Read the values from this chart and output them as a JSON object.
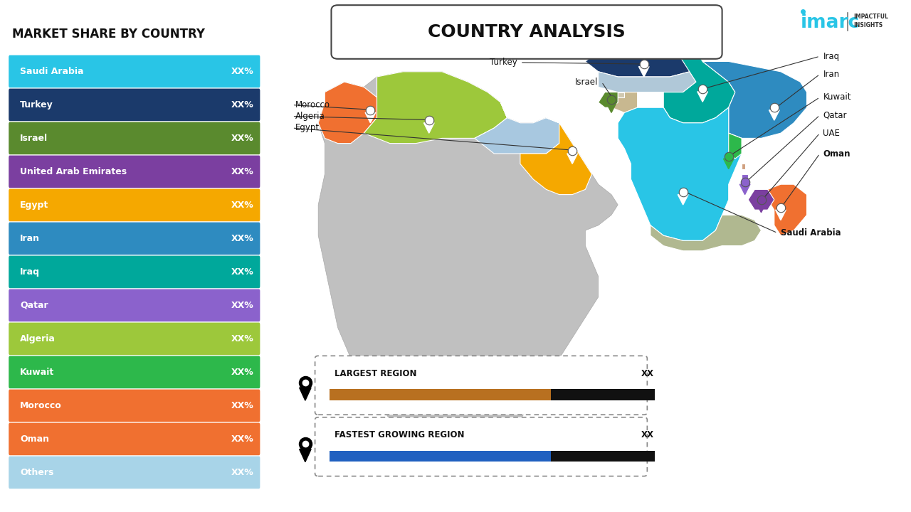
{
  "title": "COUNTRY ANALYSIS",
  "section_title": "MARKET SHARE BY COUNTRY",
  "background_color": "#FFFFFF",
  "bars": [
    {
      "label": "Saudi Arabia",
      "value": "XX%",
      "color": "#29C5E6"
    },
    {
      "label": "Turkey",
      "value": "XX%",
      "color": "#1B3A6B"
    },
    {
      "label": "Israel",
      "value": "XX%",
      "color": "#5A8A2E"
    },
    {
      "label": "United Arab Emirates",
      "value": "XX%",
      "color": "#7B3FA0"
    },
    {
      "label": "Egypt",
      "value": "XX%",
      "color": "#F5A800"
    },
    {
      "label": "Iran",
      "value": "XX%",
      "color": "#2E8BC0"
    },
    {
      "label": "Iraq",
      "value": "XX%",
      "color": "#00A89B"
    },
    {
      "label": "Qatar",
      "value": "XX%",
      "color": "#8B62CC"
    },
    {
      "label": "Algeria",
      "value": "XX%",
      "color": "#9DC83B"
    },
    {
      "label": "Kuwait",
      "value": "XX%",
      "color": "#2DB84B"
    },
    {
      "label": "Morocco",
      "value": "XX%",
      "color": "#F07030"
    },
    {
      "label": "Oman",
      "value": "XX%",
      "color": "#F07030"
    },
    {
      "label": "Others",
      "value": "XX%",
      "color": "#A8D4E8"
    }
  ],
  "legend_items": [
    {
      "label": "LARGEST REGION",
      "value": "XX",
      "bar_color": "#B87020",
      "bar_bg": "#111111"
    },
    {
      "label": "FASTEST GROWING REGION",
      "value": "XX",
      "bar_color": "#2060C0",
      "bar_bg": "#111111"
    }
  ],
  "imarc_text": "imarc",
  "imarc_subtitle": "IMPACTFUL\nINSIGHTS"
}
